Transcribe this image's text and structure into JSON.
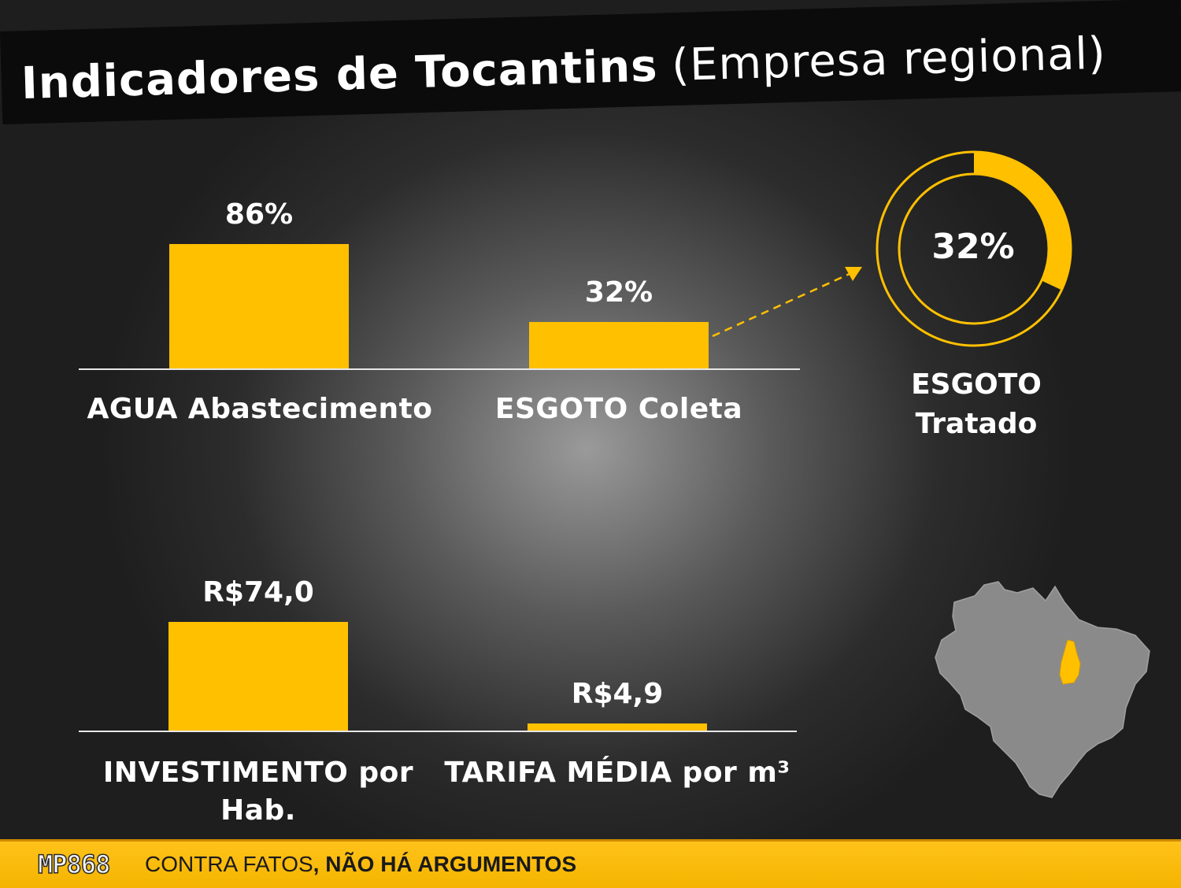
{
  "title": {
    "main": "Indicadores de Tocantins",
    "sub": "(Empresa regional)"
  },
  "chart_data": [
    {
      "type": "bar",
      "categories": [
        "AGUA Abastecimento",
        "ESGOTO Coleta"
      ],
      "values": [
        86,
        32
      ],
      "value_labels": [
        "86%",
        "32%"
      ],
      "unit": "%",
      "ylim": [
        0,
        100
      ]
    },
    {
      "type": "pie",
      "subtype": "donut",
      "labels": [
        "ESGOTO Tratado"
      ],
      "label_lines": [
        "ESGOTO",
        "Tratado"
      ],
      "values": [
        32
      ],
      "value_label": "32%",
      "unit": "%"
    },
    {
      "type": "bar",
      "categories": [
        "INVESTIMENTO por Hab.",
        "TARIFA MÉDIA por m³"
      ],
      "category_lines": [
        [
          "INVESTIMENTO por",
          "Hab."
        ],
        [
          "TARIFA MÉDIA por m³"
        ]
      ],
      "values": [
        74.0,
        4.9
      ],
      "value_labels": [
        "R$74,0",
        "R$4,9"
      ],
      "unit": "R$"
    }
  ],
  "map": {
    "highlight_region": "Tocantins"
  },
  "footer": {
    "logo": "MP868",
    "text_regular": "CONTRA FATOS",
    "text_bold": ", NÃO HÁ ARGUMENTOS"
  },
  "colors": {
    "accent": "#FFC000",
    "map_fill": "#8a8a8a",
    "footer_bg": "#FFC000"
  }
}
